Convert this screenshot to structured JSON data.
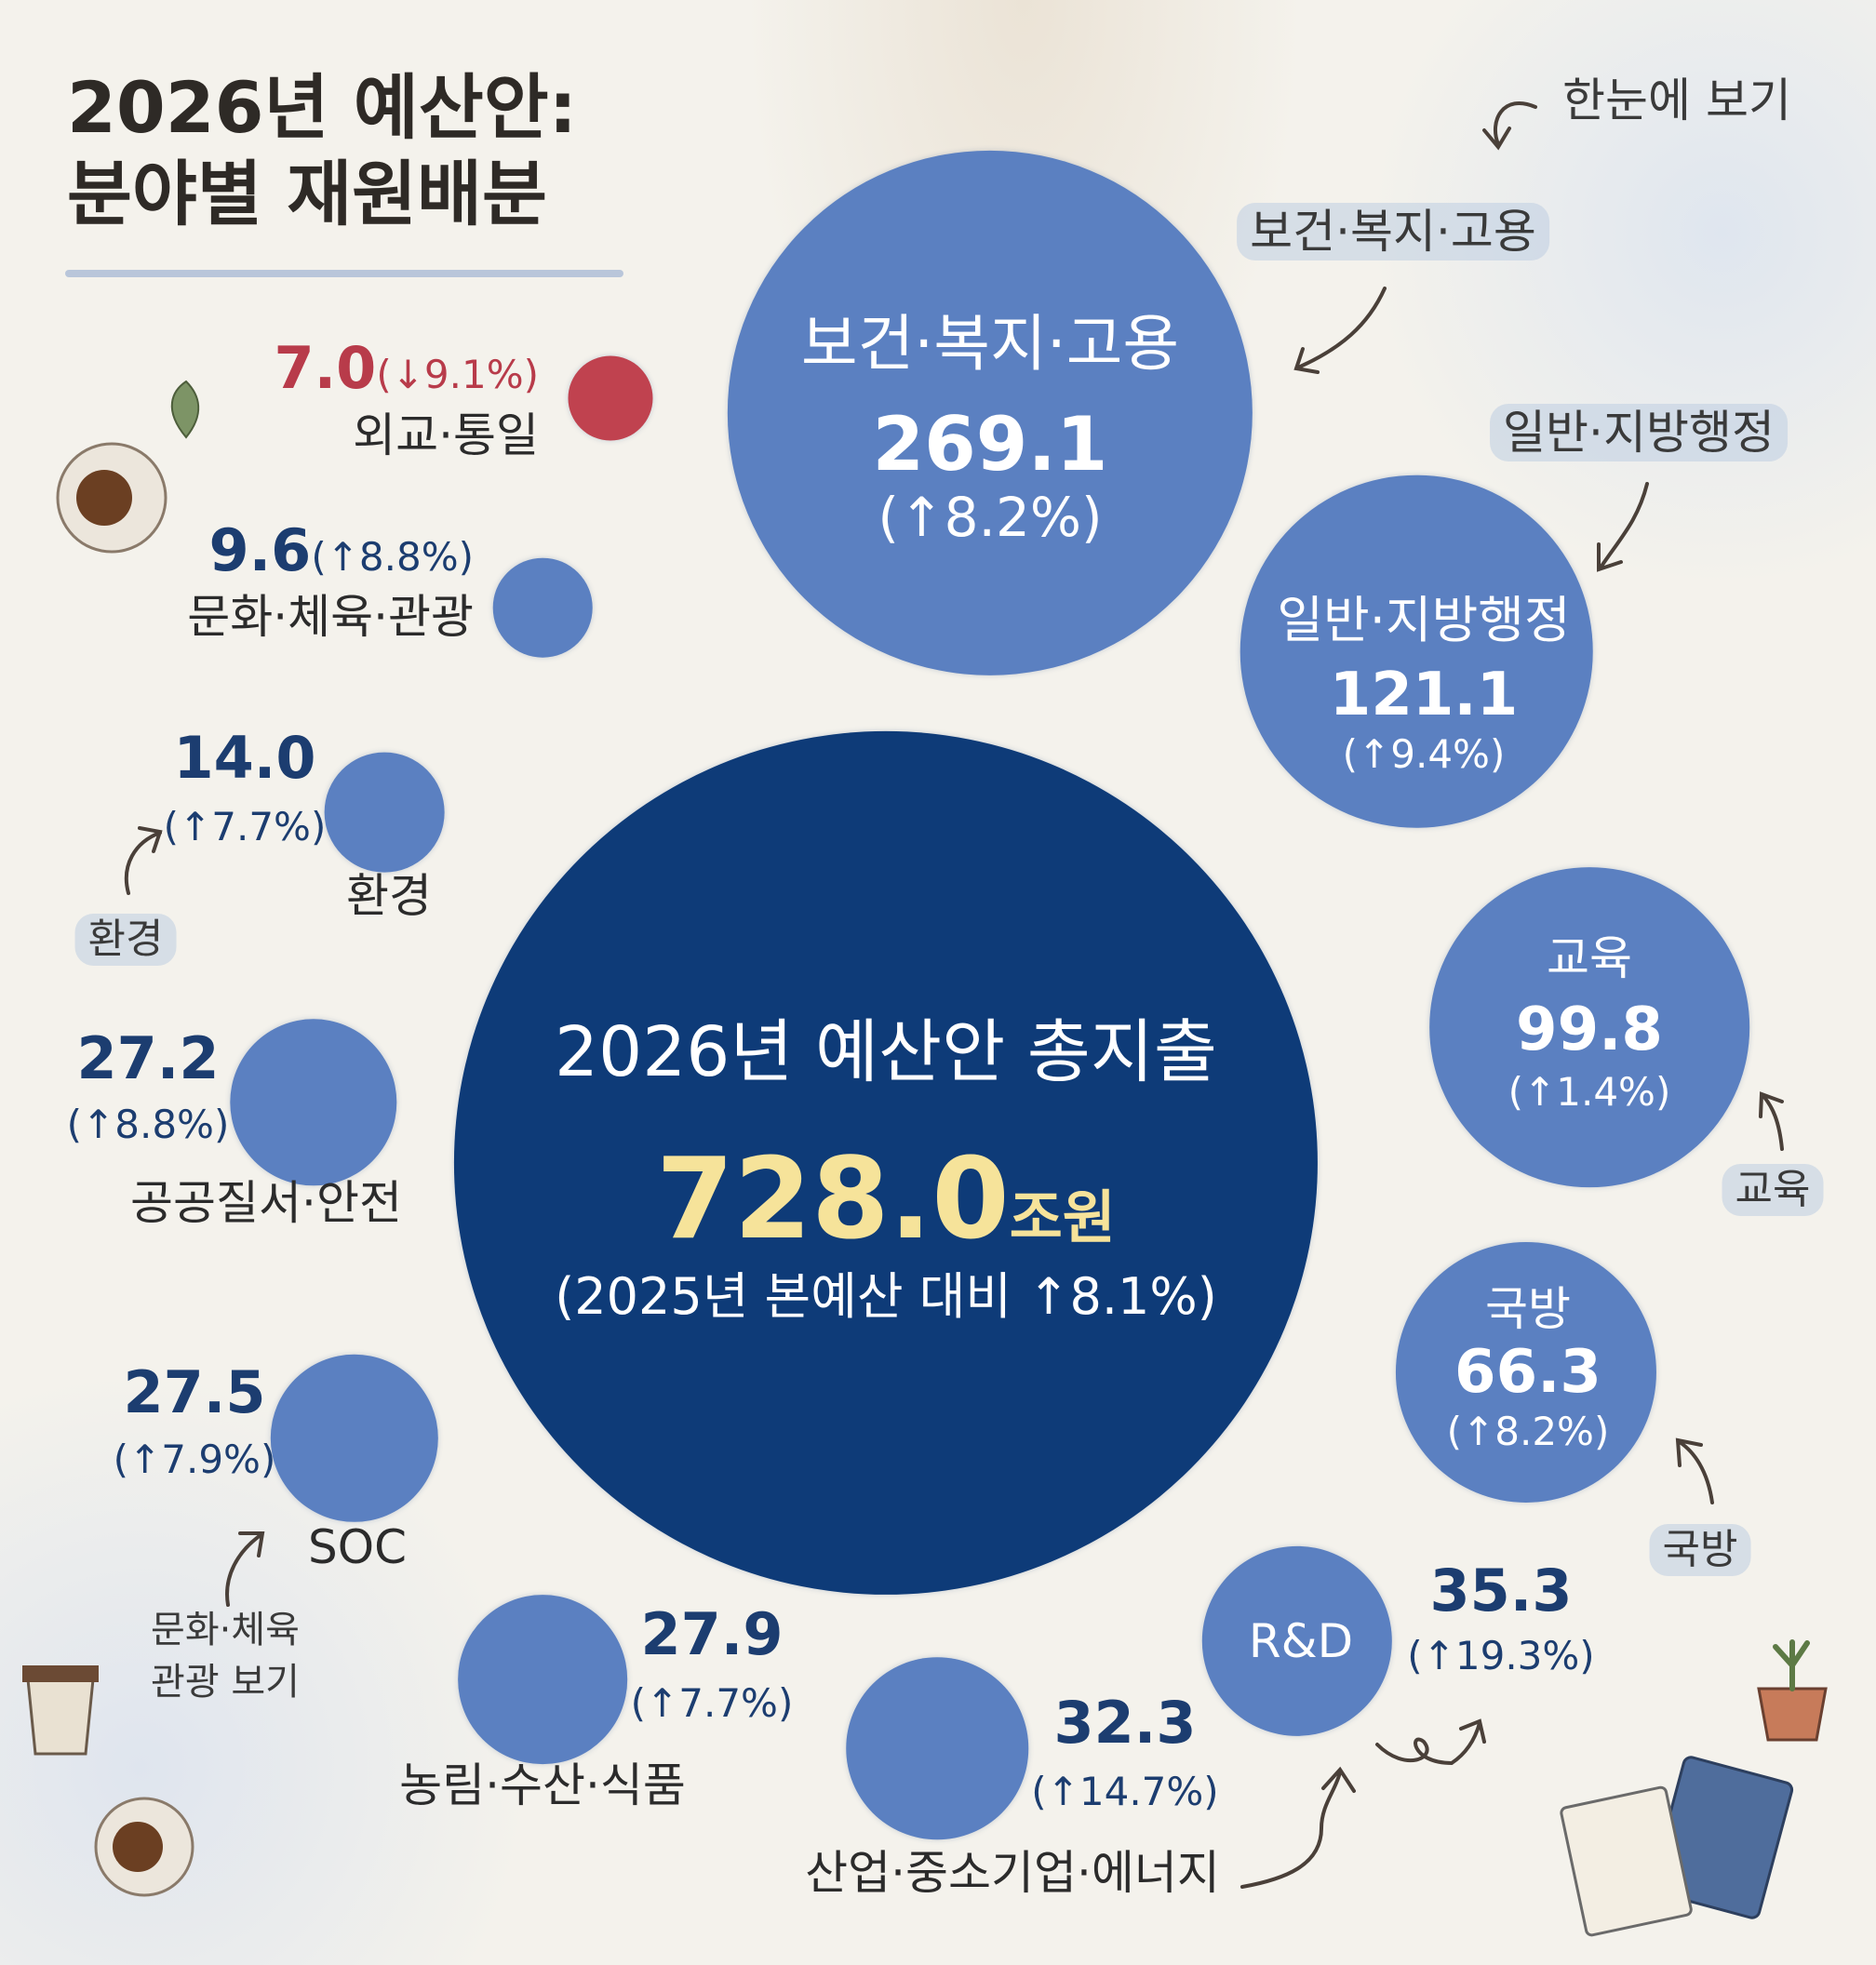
{
  "title": {
    "line1": "2026년 예산안:",
    "line2": "분야별 재원배분"
  },
  "annotations": {
    "overview": "한눈에 보기",
    "health_tag": "보건·복지·고용",
    "admin_tag": "일반·지방행정",
    "env_tag": "환경",
    "edu_tag": "교육",
    "defense_tag": "국방",
    "culture_tag_1": "문화·체육",
    "culture_tag_2": "관광 보기"
  },
  "colors": {
    "bubble": "#5b80c1",
    "total": "#0e3b78",
    "decrease": "#c0424f",
    "total_value": "#f6e39a"
  },
  "chart_data": {
    "type": "bubble",
    "unit": "조원",
    "total": {
      "label": "2026년 예산안 총지출",
      "value": "728.0",
      "unit": "조원",
      "change": "(2025년 본예산 대비 ↑8.1%)"
    },
    "items": [
      {
        "name": "보건·복지·고용",
        "value": 269.1,
        "value_text": "269.1",
        "change": "(↑8.2%)"
      },
      {
        "name": "일반·지방행정",
        "value": 121.1,
        "value_text": "121.1",
        "change": "(↑9.4%)"
      },
      {
        "name": "교육",
        "value": 99.8,
        "value_text": "99.8",
        "change": "(↑1.4%)"
      },
      {
        "name": "국방",
        "value": 66.3,
        "value_text": "66.3",
        "change": "(↑8.2%)"
      },
      {
        "name": "R&D",
        "value": 35.3,
        "value_text": "35.3",
        "change": "(↑19.3%)"
      },
      {
        "name": "산업·중소기업·에너지",
        "value": 32.3,
        "value_text": "32.3",
        "change": "(↑14.7%)"
      },
      {
        "name": "농림·수산·식품",
        "value": 27.9,
        "value_text": "27.9",
        "change": "(↑7.7%)"
      },
      {
        "name": "SOC",
        "value": 27.5,
        "value_text": "27.5",
        "change": "(↑7.9%)"
      },
      {
        "name": "공공질서·안전",
        "value": 27.2,
        "value_text": "27.2",
        "change": "(↑8.8%)"
      },
      {
        "name": "환경",
        "value": 14.0,
        "value_text": "14.0",
        "change": "(↑7.7%)"
      },
      {
        "name": "문화·체육·관광",
        "value": 9.6,
        "value_text": "9.6",
        "change": "(↑8.8%)"
      },
      {
        "name": "외교·통일",
        "value": 7.0,
        "value_text": "7.0",
        "change": "(↓9.1%)",
        "decrease": true
      }
    ]
  }
}
